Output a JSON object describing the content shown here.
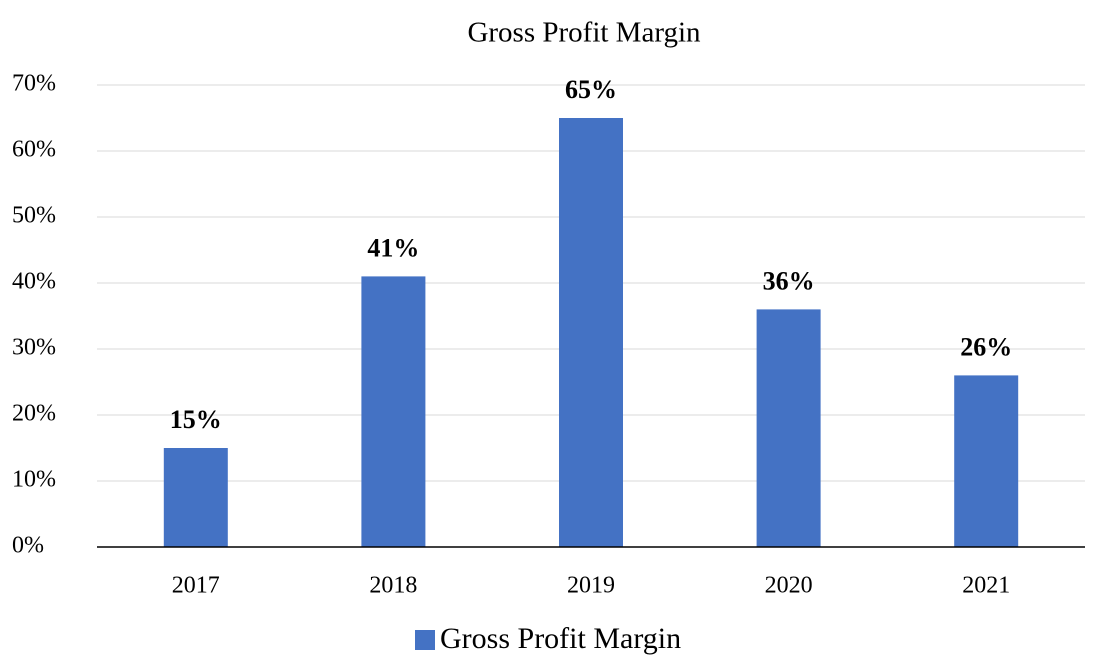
{
  "chart_data": {
    "type": "bar",
    "title": "Gross Profit Margin",
    "categories": [
      "2017",
      "2018",
      "2019",
      "2020",
      "2021"
    ],
    "series": [
      {
        "name": "Gross Profit Margin",
        "color": "#4472c4",
        "values": [
          15,
          41,
          65,
          36,
          26
        ],
        "value_labels": [
          "15%",
          "41%",
          "65%",
          "36%",
          "26%"
        ]
      }
    ],
    "ylim": [
      0,
      70
    ],
    "yticks": [
      {
        "value": 0,
        "label": "0%"
      },
      {
        "value": 10,
        "label": "10%"
      },
      {
        "value": 20,
        "label": "20%"
      },
      {
        "value": 30,
        "label": "30%"
      },
      {
        "value": 40,
        "label": "40%"
      },
      {
        "value": 50,
        "label": "50%"
      },
      {
        "value": 60,
        "label": "60%"
      },
      {
        "value": 70,
        "label": "70%"
      }
    ],
    "grid": true,
    "legend": "bottom"
  }
}
